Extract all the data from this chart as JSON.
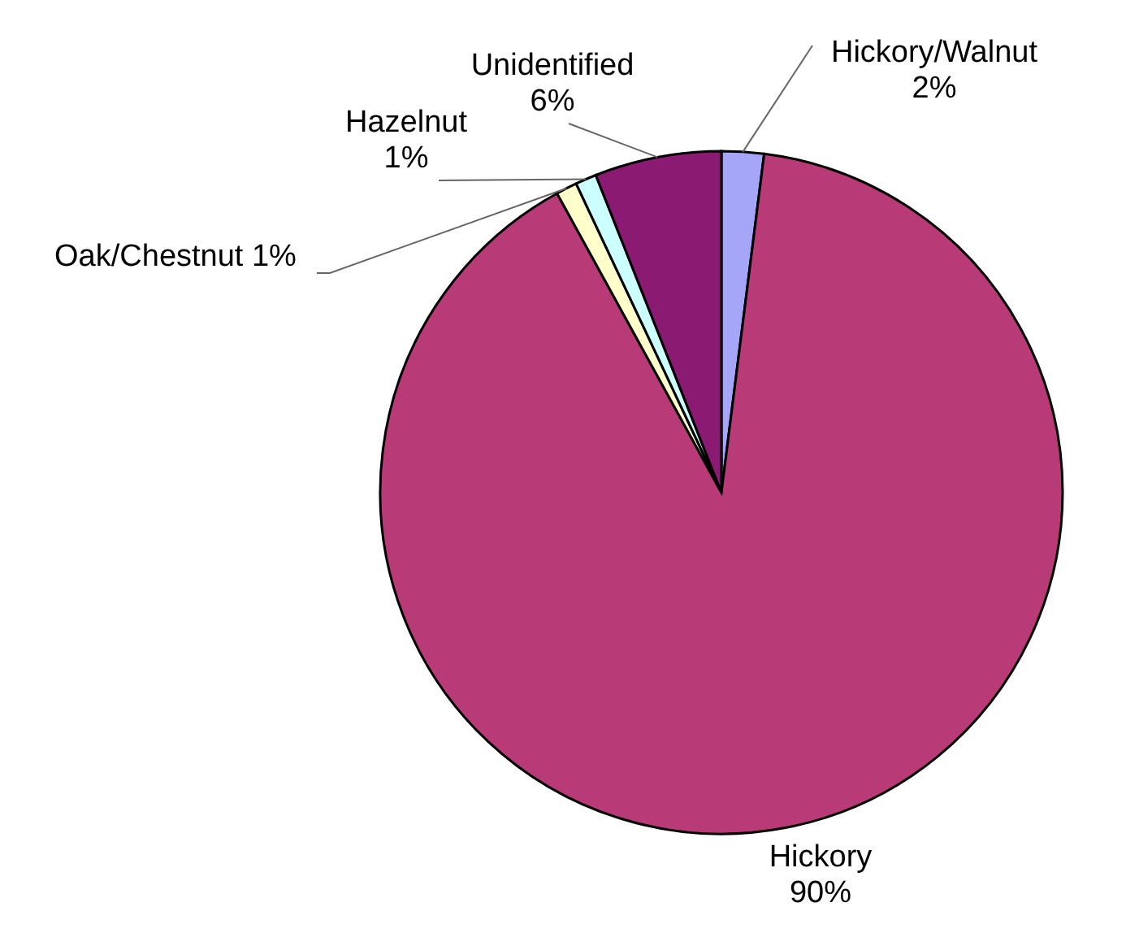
{
  "chart_data": {
    "type": "pie",
    "categories": [
      "Hickory/Walnut",
      "Hickory",
      "Oak/Chestnut",
      "Hazelnut",
      "Unidentified"
    ],
    "values": [
      2,
      90,
      1,
      1,
      6
    ],
    "value_labels": [
      "2%",
      "90%",
      "1%",
      "1%",
      "6%"
    ],
    "colors": [
      "#a6a6f8",
      "#b83b78",
      "#ffffcc",
      "#ccffff",
      "#8b1a72"
    ]
  }
}
